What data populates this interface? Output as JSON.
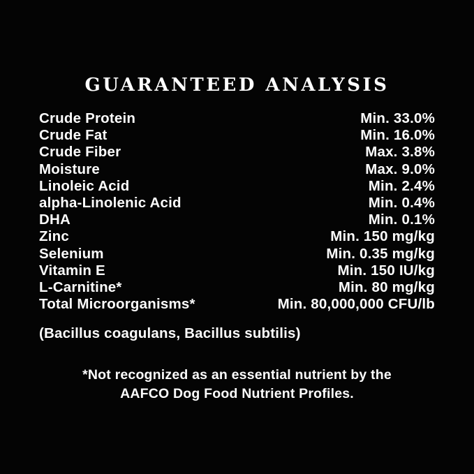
{
  "page": {
    "background_color": "#040404",
    "text_color": "#fcfcfc"
  },
  "title": "GUARANTEED ANALYSIS",
  "analysis": {
    "rows": [
      {
        "label": "Crude Protein",
        "value": "Min. 33.0%"
      },
      {
        "label": "Crude Fat",
        "value": "Min. 16.0%"
      },
      {
        "label": "Crude Fiber",
        "value": "Max. 3.8%"
      },
      {
        "label": "Moisture",
        "value": "Max. 9.0%"
      },
      {
        "label": "Linoleic Acid",
        "value": "Min. 2.4%"
      },
      {
        "label": "alpha-Linolenic Acid",
        "value": "Min. 0.4%"
      },
      {
        "label": "DHA",
        "value": "Min. 0.1%"
      },
      {
        "label": "Zinc",
        "value": "Min. 150 mg/kg"
      },
      {
        "label": "Selenium",
        "value": "Min. 0.35 mg/kg"
      },
      {
        "label": "Vitamin E",
        "value": "Min. 150 IU/kg"
      },
      {
        "label": "L-Carnitine*",
        "value": "Min. 80 mg/kg"
      },
      {
        "label": "Total Microorganisms*",
        "value": "Min. 80,000,000 CFU/lb"
      }
    ],
    "continuation": "(Bacillus coagulans, Bacillus subtilis)"
  },
  "footnote": {
    "line1": "*Not recognized as an essential nutrient by the",
    "line2": "AAFCO Dog Food Nutrient Profiles."
  }
}
